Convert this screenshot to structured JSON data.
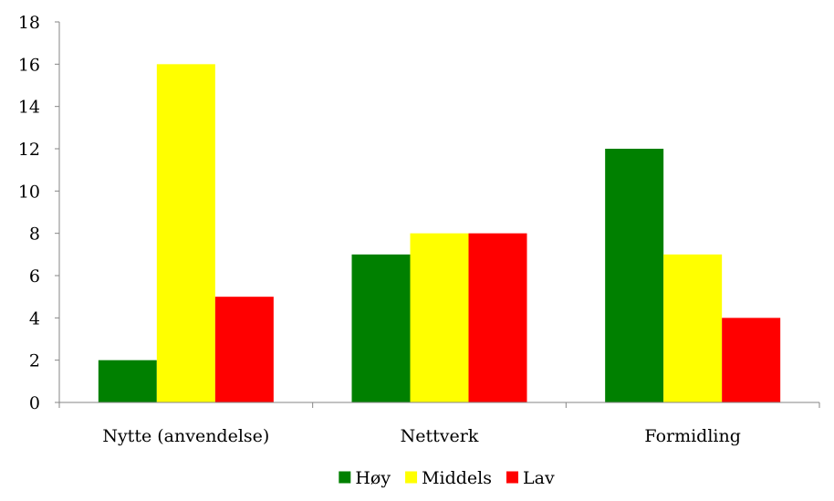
{
  "chart_data": {
    "type": "bar",
    "categories": [
      "Nytte (anvendelse)",
      "Nettverk",
      "Formidling"
    ],
    "series": [
      {
        "name": "Høy",
        "values": [
          2,
          7,
          12
        ],
        "color": "#008000"
      },
      {
        "name": "Middels",
        "values": [
          16,
          8,
          7
        ],
        "color": "#FFFF00"
      },
      {
        "name": "Lav",
        "values": [
          5,
          8,
          4
        ],
        "color": "#FF0000"
      }
    ],
    "ylim": [
      0,
      18
    ],
    "yticks": [
      0,
      2,
      4,
      6,
      8,
      10,
      12,
      14,
      16,
      18
    ],
    "grid": false,
    "legend_position": "bottom"
  }
}
